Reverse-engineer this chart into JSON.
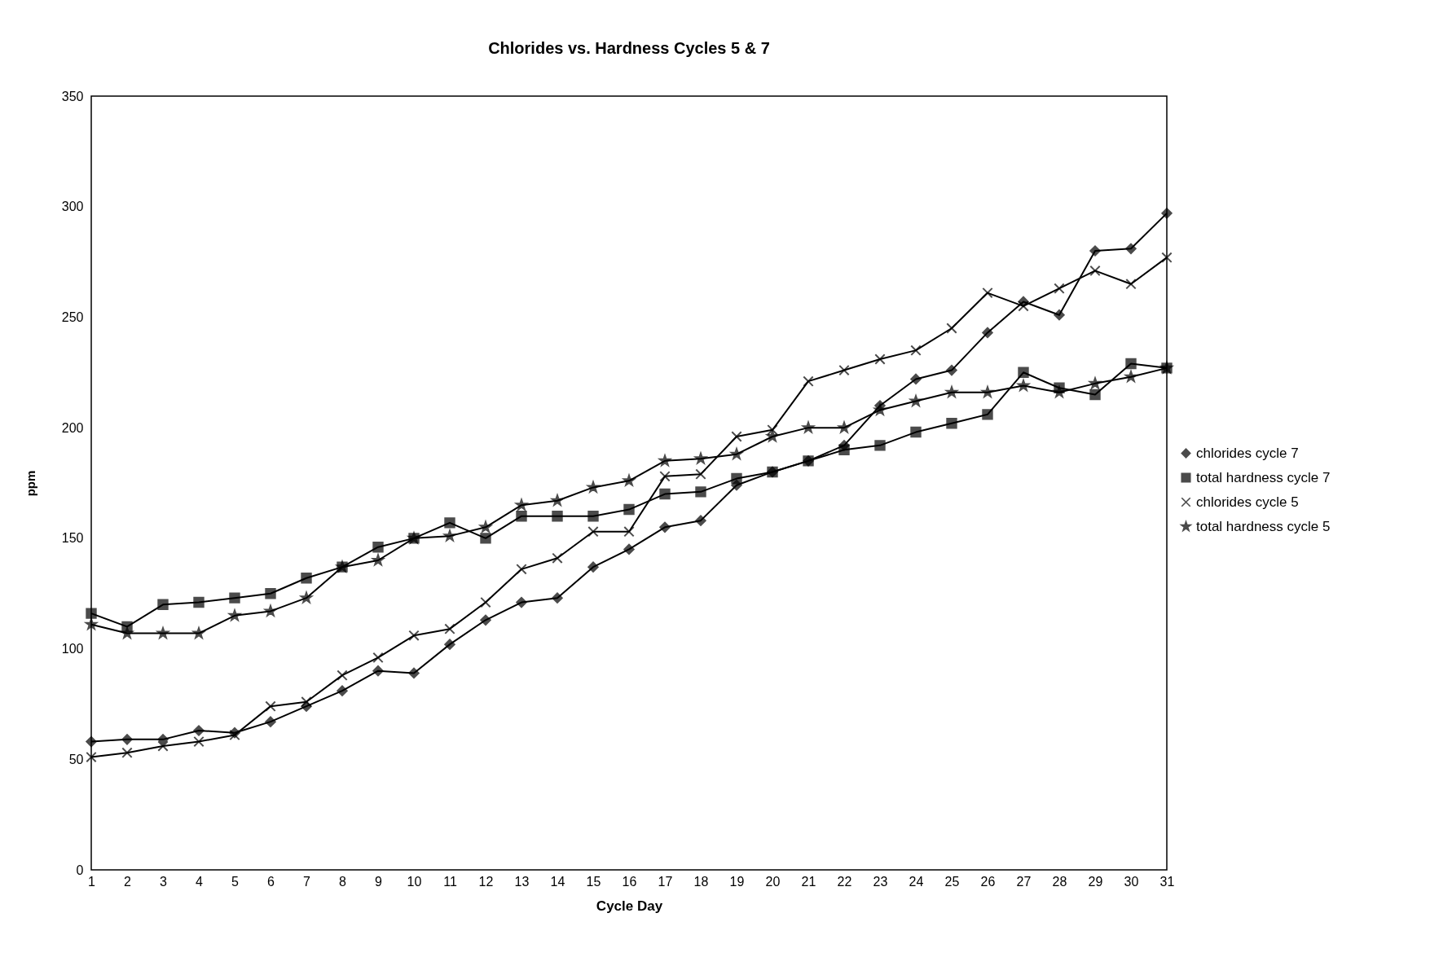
{
  "chart_data": {
    "type": "line",
    "title": "Chlorides vs. Hardness Cycles 5 & 7",
    "xlabel": "Cycle Day",
    "ylabel": "ppm",
    "x": [
      1,
      2,
      3,
      4,
      5,
      6,
      7,
      8,
      9,
      10,
      11,
      12,
      13,
      14,
      15,
      16,
      17,
      18,
      19,
      20,
      21,
      22,
      23,
      24,
      25,
      26,
      27,
      28,
      29,
      30,
      31
    ],
    "xlim": [
      1,
      31
    ],
    "xticks": [
      1,
      2,
      3,
      4,
      5,
      6,
      7,
      8,
      9,
      10,
      11,
      12,
      13,
      14,
      15,
      16,
      17,
      18,
      19,
      20,
      21,
      22,
      23,
      24,
      25,
      26,
      27,
      28,
      29,
      30,
      31
    ],
    "ylim": [
      0,
      350
    ],
    "yticks": [
      0,
      50,
      100,
      150,
      200,
      250,
      300,
      350
    ],
    "grid": false,
    "legend": "right",
    "line_style": "solid",
    "series": [
      {
        "name": "chlorides cycle 7",
        "color": "#000000",
        "marker": "diamond",
        "values": [
          58,
          59,
          59,
          63,
          62,
          67,
          74,
          81,
          90,
          89,
          102,
          113,
          121,
          123,
          137,
          145,
          155,
          158,
          174,
          180,
          185,
          192,
          210,
          222,
          226,
          243,
          257,
          251,
          280,
          281,
          297
        ]
      },
      {
        "name": "total hardness cycle 7",
        "color": "#000000",
        "marker": "square",
        "values": [
          116,
          110,
          120,
          121,
          123,
          125,
          132,
          137,
          146,
          150,
          157,
          150,
          160,
          160,
          160,
          163,
          170,
          171,
          177,
          180,
          185,
          190,
          192,
          198,
          202,
          206,
          225,
          218,
          215,
          229,
          227
        ]
      },
      {
        "name": "chlorides cycle 5",
        "color": "#000000",
        "marker": "cross",
        "values": [
          51,
          53,
          56,
          58,
          61,
          74,
          76,
          88,
          96,
          106,
          109,
          121,
          136,
          141,
          153,
          153,
          178,
          179,
          196,
          199,
          221,
          226,
          231,
          235,
          245,
          261,
          255,
          263,
          271,
          265,
          277
        ]
      },
      {
        "name": "total hardness cycle 5",
        "color": "#000000",
        "marker": "star",
        "values": [
          111,
          107,
          107,
          107,
          115,
          117,
          123,
          137,
          140,
          150,
          151,
          155,
          165,
          167,
          173,
          176,
          185,
          186,
          188,
          196,
          200,
          200,
          208,
          212,
          216,
          216,
          219,
          216,
          220,
          223,
          227
        ]
      }
    ]
  }
}
